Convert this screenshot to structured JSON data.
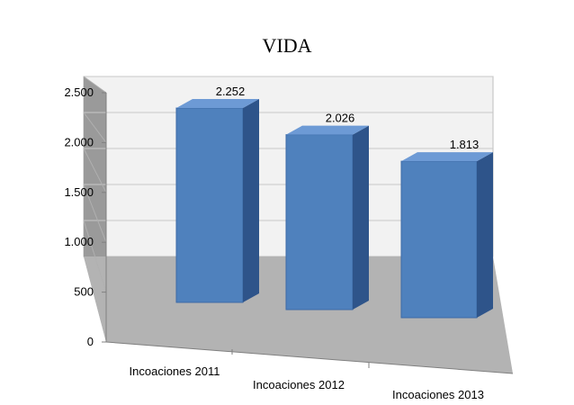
{
  "chart_data": {
    "type": "bar",
    "title": "VIDA",
    "categories": [
      "Incoaciones 2011",
      "Incoaciones 2012",
      "Incoaciones 2013"
    ],
    "values": [
      2252,
      2026,
      1813
    ],
    "data_labels": [
      "2.252",
      "2.026",
      "1.813"
    ],
    "y_ticks": [
      0,
      500,
      1000,
      1500,
      2000,
      2500
    ],
    "y_tick_labels": [
      "0",
      "500",
      "1.000",
      "1.500",
      "2.000",
      "2.500"
    ],
    "ylim": [
      0,
      2500
    ],
    "xlabel": "",
    "ylabel": "",
    "grid": true,
    "style": "3d-column",
    "colors": {
      "bar_front": "#4f81bd",
      "bar_side": "#2e548a",
      "bar_top": "#6d9ad5",
      "wall": "#f2f2f2",
      "side_wall": "#9a9a9a",
      "floor": "#b3b3b3",
      "grid": "#c8c8c8"
    }
  }
}
